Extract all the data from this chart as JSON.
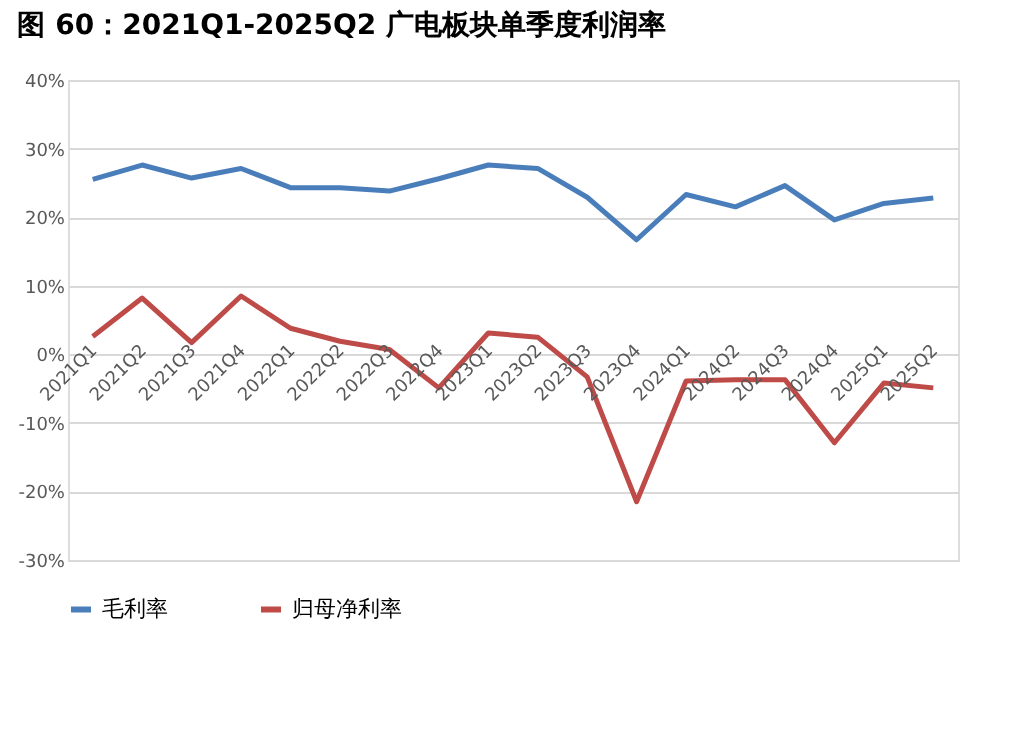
{
  "chart_data": {
    "type": "line",
    "title": "图 60：2021Q1-2025Q2 广电板块单季度利润率",
    "categories": [
      "2021Q1",
      "2021Q2",
      "2021Q3",
      "2021Q4",
      "2022Q1",
      "2022Q2",
      "2022Q3",
      "2022Q4",
      "2023Q1",
      "2023Q2",
      "2023Q3",
      "2023Q4",
      "2024Q1",
      "2024Q2",
      "2024Q3",
      "2024Q4",
      "2025Q1",
      "2025Q2"
    ],
    "series": [
      {
        "name": "毛利率",
        "color": "#4a7ebb",
        "values": [
          25.5,
          27.6,
          25.7,
          27.1,
          24.3,
          24.3,
          23.8,
          25.6,
          27.6,
          27.1,
          22.9,
          16.7,
          23.3,
          21.5,
          24.6,
          19.6,
          22.0,
          22.8
        ]
      },
      {
        "name": "归母净利率",
        "color": "#be4b48",
        "values": [
          2.6,
          8.2,
          1.7,
          8.5,
          3.8,
          1.9,
          0.7,
          -4.9,
          3.1,
          2.5,
          -3.3,
          -21.5,
          -3.9,
          -3.7,
          -3.7,
          -12.9,
          -4.2,
          -4.9
        ]
      }
    ],
    "ylim": [
      -30,
      40
    ],
    "yticks": [
      {
        "value": -30,
        "label": "-30%"
      },
      {
        "value": -20,
        "label": "-20%"
      },
      {
        "value": -10,
        "label": "-10%"
      },
      {
        "value": 0,
        "label": "0%"
      },
      {
        "value": 10,
        "label": "10%"
      },
      {
        "value": 20,
        "label": "20%"
      },
      {
        "value": 30,
        "label": "30%"
      },
      {
        "value": 40,
        "label": "40%"
      }
    ],
    "grid": "y",
    "legend": "bottom",
    "marker": "none",
    "line_style": "solid"
  }
}
